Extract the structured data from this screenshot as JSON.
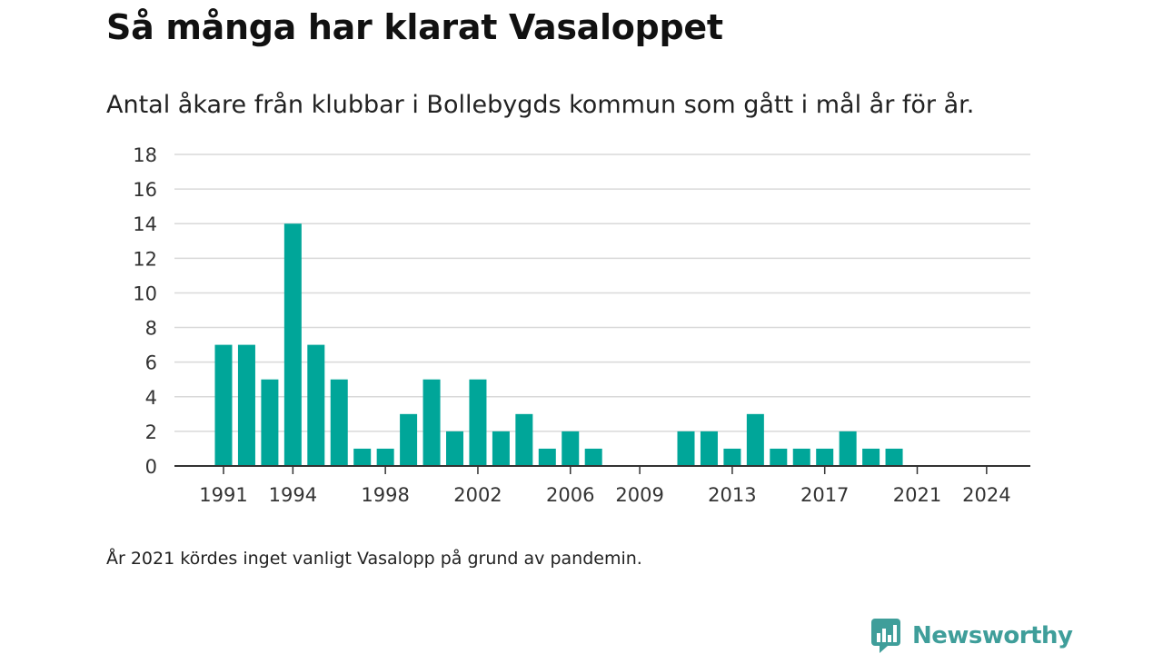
{
  "header": {
    "title": "Så många har klarat Vasaloppet",
    "subtitle": "Antal åkare från klubbar i Bollebygds kommun som gått i mål år för år."
  },
  "footer": {
    "note": "År 2021 kördes inget vanligt Vasalopp på grund av pandemin.",
    "brand": "Newsworthy",
    "brand_icon": "newsworthy-logo-icon"
  },
  "colors": {
    "bar": "#00a699",
    "grid": "#d9d9d9",
    "axis": "#333333",
    "brand": "#3f9e9a"
  },
  "chart_data": {
    "type": "bar",
    "title": "Så många har klarat Vasaloppet",
    "subtitle": "Antal åkare från klubbar i Bollebygds kommun som gått i mål år för år.",
    "xlabel": "",
    "ylabel": "",
    "x": [
      1991,
      1992,
      1993,
      1994,
      1995,
      1996,
      1997,
      1998,
      1999,
      2000,
      2001,
      2002,
      2003,
      2004,
      2005,
      2006,
      2007,
      2008,
      2009,
      2010,
      2011,
      2012,
      2013,
      2014,
      2015,
      2016,
      2017,
      2018,
      2019,
      2020,
      2021,
      2022,
      2023,
      2024
    ],
    "values": [
      7,
      7,
      5,
      14,
      7,
      5,
      1,
      1,
      3,
      5,
      2,
      5,
      2,
      3,
      1,
      2,
      1,
      0,
      0,
      0,
      2,
      2,
      1,
      3,
      1,
      1,
      1,
      2,
      1,
      1,
      0,
      0,
      0,
      0
    ],
    "ylim": [
      0,
      18
    ],
    "yticks": [
      0,
      2,
      4,
      6,
      8,
      10,
      12,
      14,
      16,
      18
    ],
    "xticks": [
      1991,
      1994,
      1998,
      2002,
      2006,
      2009,
      2013,
      2017,
      2021,
      2024
    ],
    "grid": true,
    "legend": "none"
  }
}
